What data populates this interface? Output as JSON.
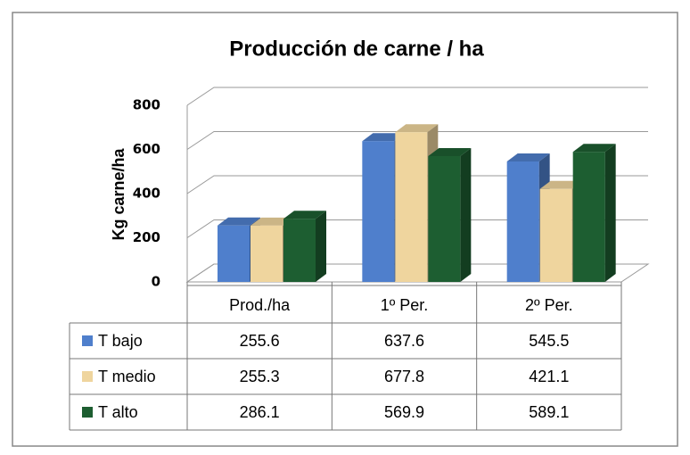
{
  "chart_data": {
    "type": "bar",
    "title": "Producción de carne / ha",
    "y_label": "Kg carne/ha",
    "categories": [
      "Prod./ha",
      "1º Per.",
      "2º Per."
    ],
    "series": [
      {
        "name": "T bajo",
        "color": "#4f7fcc",
        "values": [
          255.6,
          637.6,
          545.5
        ]
      },
      {
        "name": "T medio",
        "color": "#efd59e",
        "values": [
          255.3,
          677.8,
          421.1
        ]
      },
      {
        "name": "T alto",
        "color": "#1d5e31",
        "values": [
          286.1,
          569.9,
          589.1
        ]
      }
    ],
    "ylim": [
      0,
      800
    ],
    "yticks": [
      0,
      200,
      400,
      600,
      800
    ],
    "grid": true
  }
}
